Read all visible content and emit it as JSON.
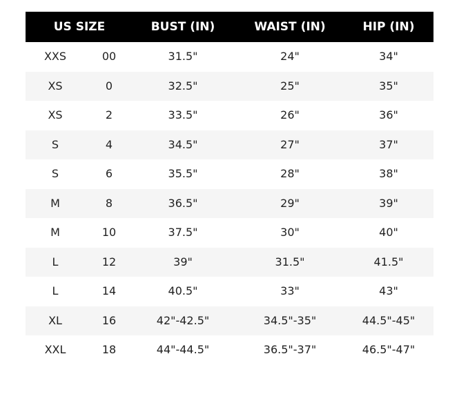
{
  "header": {
    "us_size": "US SIZE",
    "bust": "BUST (IN)",
    "waist": "WAIST (IN)",
    "hip": "HIP (IN)"
  },
  "rows": [
    {
      "letter": "XXS",
      "number": "00",
      "bust": "31.5\"",
      "waist": "24\"",
      "hip": "34\""
    },
    {
      "letter": "XS",
      "number": "0",
      "bust": "32.5\"",
      "waist": "25\"",
      "hip": "35\""
    },
    {
      "letter": "XS",
      "number": "2",
      "bust": "33.5\"",
      "waist": "26\"",
      "hip": "36\""
    },
    {
      "letter": "S",
      "number": "4",
      "bust": "34.5\"",
      "waist": "27\"",
      "hip": "37\""
    },
    {
      "letter": "S",
      "number": "6",
      "bust": "35.5\"",
      "waist": "28\"",
      "hip": "38\""
    },
    {
      "letter": "M",
      "number": "8",
      "bust": "36.5\"",
      "waist": "29\"",
      "hip": "39\""
    },
    {
      "letter": "M",
      "number": "10",
      "bust": "37.5\"",
      "waist": "30\"",
      "hip": "40\""
    },
    {
      "letter": "L",
      "number": "12",
      "bust": "39\"",
      "waist": "31.5\"",
      "hip": "41.5\""
    },
    {
      "letter": "L",
      "number": "14",
      "bust": "40.5\"",
      "waist": "33\"",
      "hip": "43\""
    },
    {
      "letter": "XL",
      "number": "16",
      "bust": "42\"-42.5\"",
      "waist": "34.5\"-35\"",
      "hip": "44.5\"-45\""
    },
    {
      "letter": "XXL",
      "number": "18",
      "bust": "44\"-44.5\"",
      "waist": "36.5\"-37\"",
      "hip": "46.5\"-47\""
    }
  ],
  "colors": {
    "header_bg": "#000000",
    "header_text": "#ffffff",
    "alt_row": "#f5f5f5"
  }
}
